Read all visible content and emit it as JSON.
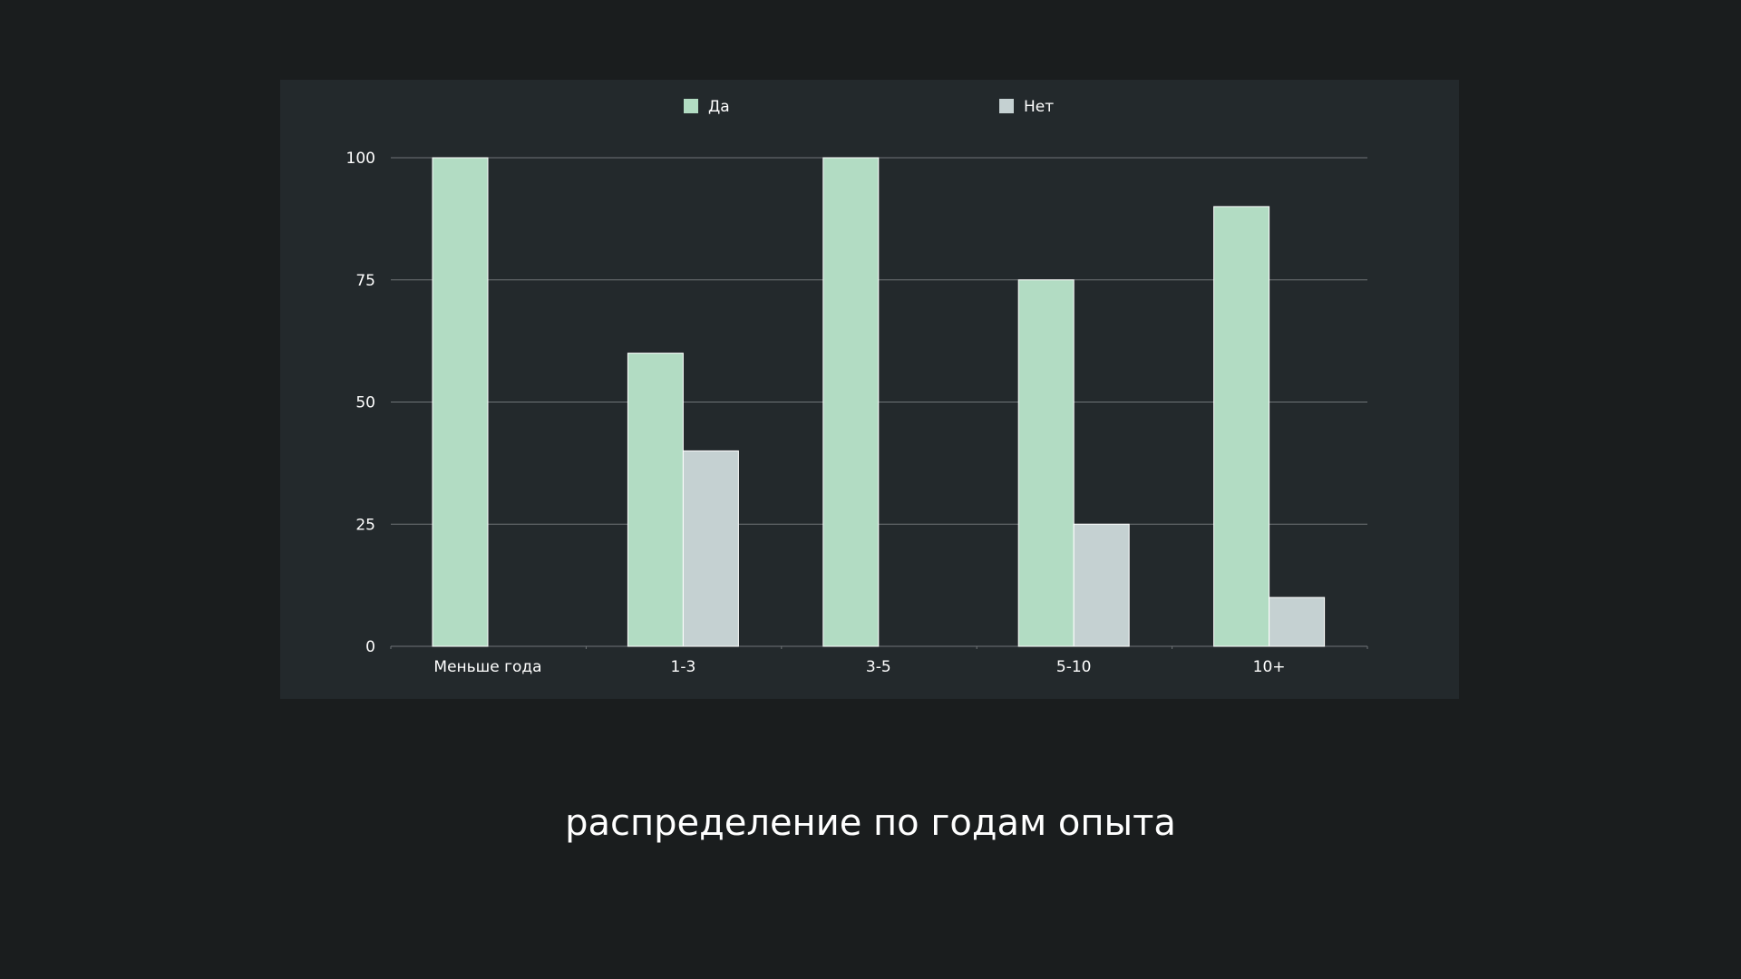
{
  "caption": "распределение по годам опыта",
  "colors": {
    "background": "#1a1d1e",
    "panel": "#23292c",
    "grid": "#6f7477",
    "text": "#ffffff"
  },
  "chart_data": {
    "type": "bar",
    "categories": [
      "Меньше года",
      "1-3",
      "3-5",
      "5-10",
      "10+"
    ],
    "series": [
      {
        "name": "Да",
        "color": "#b2dcc3",
        "values": [
          100,
          60,
          100,
          75,
          90
        ]
      },
      {
        "name": "Нет",
        "color": "#c5d1d2",
        "values": [
          0,
          40,
          0,
          25,
          10
        ]
      }
    ],
    "yticks": [
      0,
      25,
      50,
      75,
      100
    ],
    "ylim": [
      0,
      100
    ],
    "grid": true,
    "legend": "top-center",
    "title": "",
    "xlabel": "",
    "ylabel": ""
  }
}
